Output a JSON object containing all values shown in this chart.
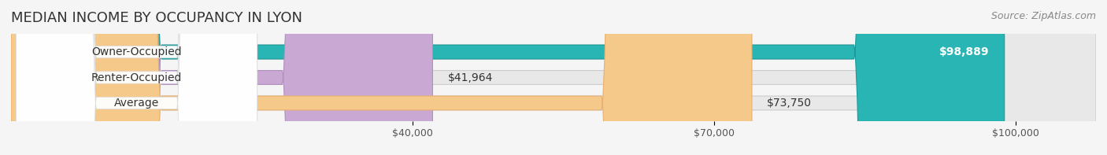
{
  "title": "MEDIAN INCOME BY OCCUPANCY IN LYON",
  "source": "Source: ZipAtlas.com",
  "categories": [
    "Owner-Occupied",
    "Renter-Occupied",
    "Average"
  ],
  "values": [
    98889,
    41964,
    73750
  ],
  "labels": [
    "$98,889",
    "$41,964",
    "$73,750"
  ],
  "bar_colors": [
    "#2ab5b5",
    "#c9a8d4",
    "#f5c98a"
  ],
  "bar_edge_colors": [
    "#1a9898",
    "#b090c0",
    "#e8b070"
  ],
  "x_ticks": [
    40000,
    70000,
    100000
  ],
  "x_tick_labels": [
    "$40,000",
    "$70,000",
    "$100,000"
  ],
  "x_min": 0,
  "x_max": 108000,
  "background_color": "#f5f5f5",
  "bar_bg_color": "#e8e8e8",
  "title_fontsize": 13,
  "source_fontsize": 9,
  "label_fontsize": 10,
  "tick_fontsize": 9,
  "bar_height": 0.55,
  "fig_width": 14.06,
  "fig_height": 1.97
}
